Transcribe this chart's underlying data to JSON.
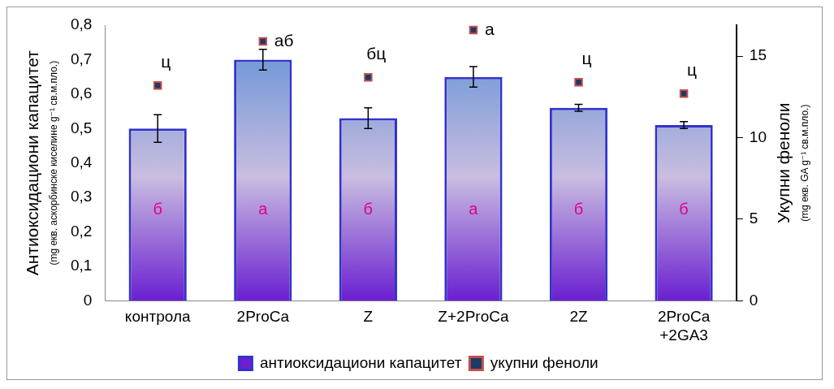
{
  "chart_data": {
    "type": "bar",
    "ylabel": "Антиоксидациони капацитет\n(mg екв. аскорбинске киселине g⁻¹ св.м.пло.)",
    "y2label": "Укупни феноли\n(mg екв. GA g⁻¹ св.м.пло.)",
    "categories": [
      "контрола",
      "2ProCa",
      "Z",
      "Z+2ProCa",
      "2Z",
      "2ProCa +2GA3"
    ],
    "series": [
      {
        "name": "антиоксидациони капацитет",
        "color": "#3333cc",
        "values": [
          0.5,
          0.7,
          0.53,
          0.65,
          0.56,
          0.51
        ],
        "errors": [
          0.04,
          0.03,
          0.03,
          0.03,
          0.01,
          0.01
        ],
        "value_labels": [
          "б",
          "а",
          "б",
          "а",
          "б",
          "б"
        ]
      },
      {
        "name": "укупни феноли",
        "type": "scatter",
        "axis": "y2",
        "color": "#1f3864",
        "marker": "square",
        "values": [
          13.2,
          15.9,
          13.7,
          16.6,
          13.4,
          12.7
        ],
        "value_labels": [
          "ц",
          "аб",
          "бц",
          "а",
          "ц",
          "ц"
        ]
      }
    ],
    "ylim": [
      0,
      0.8
    ],
    "yticks": [
      0,
      {
        "value": 0.1,
        "label": "0,1"
      },
      {
        "value": 0.2,
        "label": "0,2"
      },
      {
        "value": 0.3,
        "label": "0,3"
      },
      {
        "value": 0.4,
        "label": "0,4"
      },
      {
        "value": 0.5,
        "label": "0,5"
      },
      {
        "value": 0.6,
        "label": "0,6"
      },
      {
        "value": 0.7,
        "label": "0,7"
      },
      {
        "value": 0.8,
        "label": "0,8"
      }
    ],
    "y2lim": [
      0,
      16.9
    ],
    "y2ticks": [
      0,
      5,
      10,
      15
    ],
    "legend": "bottom",
    "grid": false
  }
}
